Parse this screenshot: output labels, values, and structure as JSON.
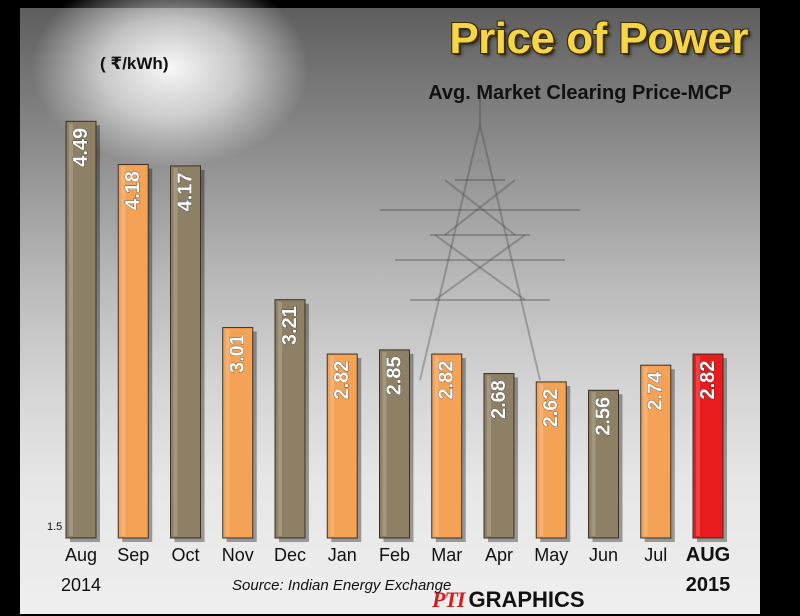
{
  "header": {
    "title": "Price of Power",
    "subtitle": "Avg. Market Clearing Price-MCP",
    "unit": "( ₹/kWh)"
  },
  "footer": {
    "source": "Source: Indian Energy Exchange",
    "credit_logo": "PTI",
    "credit_text": "GRAPHICS"
  },
  "colors": {
    "taupe": "#8e8065",
    "orange": "#f3a256",
    "highlight": "#e81c1c"
  },
  "chart_data": {
    "type": "bar",
    "title": "Price of Power",
    "subtitle": "Avg. Market Clearing Price-MCP",
    "ylabel": "( ₹/kWh)",
    "ylim": [
      1.5,
      4.6
    ],
    "axis_min_label": "1.5",
    "categories": [
      "Aug",
      "Sep",
      "Oct",
      "Nov",
      "Dec",
      "Jan",
      "Feb",
      "Mar",
      "Apr",
      "May",
      "Jun",
      "Jul",
      "AUG"
    ],
    "year_labels": [
      {
        "category_index": 0,
        "text": "2014"
      },
      {
        "category_index": 12,
        "text": "2015"
      }
    ],
    "values": [
      4.49,
      4.18,
      4.17,
      3.01,
      3.21,
      2.82,
      2.85,
      2.82,
      2.68,
      2.62,
      2.56,
      2.74,
      2.82
    ],
    "value_labels": [
      "4.49",
      "4.18",
      "4.17",
      "3.01",
      "3.21",
      "2.82",
      "2.85",
      "2.82",
      "2.68",
      "2.62",
      "2.56",
      "2.74",
      "2.82"
    ],
    "bar_colors": [
      "taupe",
      "orange",
      "taupe",
      "orange",
      "taupe",
      "orange",
      "taupe",
      "orange",
      "taupe",
      "orange",
      "taupe",
      "orange",
      "highlight"
    ],
    "highlight_index": 12
  }
}
